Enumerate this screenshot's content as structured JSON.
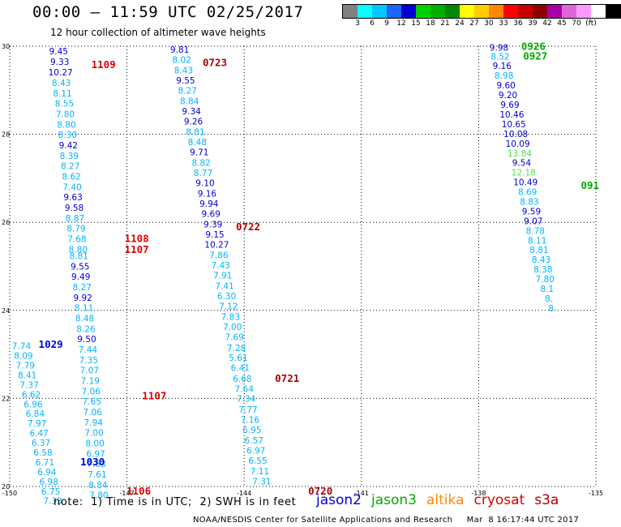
{
  "title": "00:00 – 11:59 UTC 02/25/2017",
  "subtitle": "12 hour collection of altimeter wave heights",
  "colorbar": {
    "colors": [
      "#808080",
      "#00ffff",
      "#00c8ff",
      "#1e64ff",
      "#0000d0",
      "#00d000",
      "#00b000",
      "#008800",
      "#ffff00",
      "#ffcc00",
      "#ff8800",
      "#ff0000",
      "#c80000",
      "#900000",
      "#aa00aa",
      "#dd66dd",
      "#ff99ff",
      "#ffffff",
      "#000000"
    ],
    "labels": [
      "3",
      "6",
      "9",
      "12",
      "15",
      "18",
      "21",
      "24",
      "27",
      "30",
      "33",
      "36",
      "39",
      "42",
      "45",
      "70",
      "(ft)"
    ]
  },
  "map": {
    "lon_range": [
      -150,
      -135
    ],
    "lat_range": [
      20,
      30
    ],
    "lon_ticks": [
      {
        "v": -150,
        "t": "-150"
      },
      {
        "v": -147,
        "t": "-147"
      },
      {
        "v": -144,
        "t": "-144"
      },
      {
        "v": -141,
        "t": "-141"
      },
      {
        "v": -138,
        "t": "-138"
      },
      {
        "v": -135,
        "t": "-135"
      }
    ],
    "lat_ticks": [
      {
        "v": 30,
        "t": "30"
      },
      {
        "v": 28,
        "t": "28"
      },
      {
        "v": 26,
        "t": "26"
      },
      {
        "v": 24,
        "t": "24"
      },
      {
        "v": 22,
        "t": "22"
      },
      {
        "v": 20,
        "t": "20"
      }
    ]
  },
  "satellite_colors": {
    "jason2": "#0000dd",
    "jason3": "#00aa00",
    "altika": "#ff8800",
    "cryosat": "#dd0000",
    "s3a": "#aa0000",
    "h_light": "#00b4ff",
    "h_mid": "#1e78ff",
    "h_dark": "#0000cc"
  },
  "tracks": [
    {
      "id": "A",
      "points": [
        {
          "lon": -148.75,
          "lat": 29.82,
          "swh": "9.45"
        },
        {
          "lon": -148.72,
          "lat": 29.58,
          "swh": "9.33"
        },
        {
          "lon": -148.7,
          "lat": 29.34,
          "swh": "10.27"
        },
        {
          "lon": -148.68,
          "lat": 29.1,
          "swh": "8.43"
        },
        {
          "lon": -148.65,
          "lat": 28.86,
          "swh": "8.11"
        },
        {
          "lon": -148.6,
          "lat": 28.63,
          "swh": "8.55"
        },
        {
          "lon": -148.58,
          "lat": 28.39,
          "swh": "7.80"
        },
        {
          "lon": -148.55,
          "lat": 28.15,
          "swh": "8.80"
        },
        {
          "lon": -148.52,
          "lat": 27.92,
          "swh": "8.30"
        },
        {
          "lon": -148.5,
          "lat": 27.68,
          "swh": "9.42"
        },
        {
          "lon": -148.48,
          "lat": 27.44,
          "swh": "8.39"
        },
        {
          "lon": -148.45,
          "lat": 27.21,
          "swh": "8.27"
        },
        {
          "lon": -148.42,
          "lat": 26.97,
          "swh": "8.62"
        },
        {
          "lon": -148.4,
          "lat": 26.73,
          "swh": "7.40"
        },
        {
          "lon": -148.38,
          "lat": 26.5,
          "swh": "9.63"
        },
        {
          "lon": -148.35,
          "lat": 26.26,
          "swh": "9.58"
        },
        {
          "lon": -148.33,
          "lat": 26.02,
          "swh": "8.87"
        },
        {
          "lon": -148.3,
          "lat": 25.79,
          "swh": "8.79"
        },
        {
          "lon": -148.28,
          "lat": 25.55,
          "swh": "7.68"
        },
        {
          "lon": -148.25,
          "lat": 25.31,
          "swh": "8.80"
        },
        {
          "lon": -148.23,
          "lat": 25.17,
          "swh": "8.81"
        },
        {
          "lon": -148.2,
          "lat": 24.93,
          "swh": "9.55"
        },
        {
          "lon": -148.18,
          "lat": 24.7,
          "swh": "9.49"
        },
        {
          "lon": -148.15,
          "lat": 24.46,
          "swh": "8.27"
        },
        {
          "lon": -148.13,
          "lat": 24.22,
          "swh": "9.92"
        },
        {
          "lon": -148.1,
          "lat": 23.99,
          "swh": "8.11"
        },
        {
          "lon": -148.08,
          "lat": 23.75,
          "swh": "8.48"
        },
        {
          "lon": -148.05,
          "lat": 23.51,
          "swh": "8.26"
        },
        {
          "lon": -148.03,
          "lat": 23.28,
          "swh": "9.50"
        },
        {
          "lon": -148.0,
          "lat": 23.04,
          "swh": "7.44"
        },
        {
          "lon": -147.98,
          "lat": 22.8,
          "swh": "7.35"
        },
        {
          "lon": -147.96,
          "lat": 22.57,
          "swh": "7.07"
        },
        {
          "lon": -147.94,
          "lat": 22.33,
          "swh": "7.19"
        },
        {
          "lon": -147.92,
          "lat": 22.09,
          "swh": "7.06"
        },
        {
          "lon": -147.9,
          "lat": 21.86,
          "swh": "7.65"
        },
        {
          "lon": -147.88,
          "lat": 21.62,
          "swh": "7.06"
        },
        {
          "lon": -147.86,
          "lat": 21.38,
          "swh": "7.94"
        },
        {
          "lon": -147.84,
          "lat": 21.15,
          "swh": "7.00"
        },
        {
          "lon": -147.82,
          "lat": 20.91,
          "swh": "8.00"
        },
        {
          "lon": -147.8,
          "lat": 20.67,
          "swh": "6.97"
        },
        {
          "lon": -147.78,
          "lat": 20.44,
          "swh": "7.63"
        },
        {
          "lon": -147.76,
          "lat": 20.2,
          "swh": "7.61"
        },
        {
          "lon": -147.74,
          "lat": 19.96,
          "swh": "8.84"
        },
        {
          "lon": -147.72,
          "lat": 19.73,
          "swh": "7.80"
        }
      ]
    },
    {
      "id": "B",
      "points": [
        {
          "lon": -149.7,
          "lat": 23.12,
          "swh": "7.74"
        },
        {
          "lon": -149.65,
          "lat": 22.9,
          "swh": "8.09"
        },
        {
          "lon": -149.6,
          "lat": 22.68,
          "swh": "7.79"
        },
        {
          "lon": -149.55,
          "lat": 22.46,
          "swh": "8.41"
        },
        {
          "lon": -149.5,
          "lat": 22.24,
          "swh": "7.37"
        },
        {
          "lon": -149.45,
          "lat": 22.02,
          "swh": "6.62"
        },
        {
          "lon": -149.4,
          "lat": 21.8,
          "swh": "6.96"
        },
        {
          "lon": -149.35,
          "lat": 21.58,
          "swh": "6.84"
        },
        {
          "lon": -149.3,
          "lat": 21.36,
          "swh": "7.97"
        },
        {
          "lon": -149.25,
          "lat": 21.14,
          "swh": "6.47"
        },
        {
          "lon": -149.2,
          "lat": 20.92,
          "swh": "6.37"
        },
        {
          "lon": -149.15,
          "lat": 20.7,
          "swh": "6.58"
        },
        {
          "lon": -149.1,
          "lat": 20.48,
          "swh": "6.71"
        },
        {
          "lon": -149.05,
          "lat": 20.26,
          "swh": "6.94"
        },
        {
          "lon": -149.0,
          "lat": 20.04,
          "swh": "6.98"
        },
        {
          "lon": -148.95,
          "lat": 19.82,
          "swh": "6.75"
        },
        {
          "lon": -148.9,
          "lat": 19.6,
          "swh": "7.33"
        }
      ]
    },
    {
      "id": "C",
      "points": [
        {
          "lon": -145.65,
          "lat": 29.85,
          "swh": "9.81"
        },
        {
          "lon": -145.6,
          "lat": 29.62,
          "swh": "8.02"
        },
        {
          "lon": -145.55,
          "lat": 29.38,
          "swh": "8.43"
        },
        {
          "lon": -145.5,
          "lat": 29.15,
          "swh": "9.55"
        },
        {
          "lon": -145.45,
          "lat": 28.92,
          "swh": "8.27"
        },
        {
          "lon": -145.4,
          "lat": 28.68,
          "swh": "8.84"
        },
        {
          "lon": -145.35,
          "lat": 28.45,
          "swh": "9.34"
        },
        {
          "lon": -145.3,
          "lat": 28.22,
          "swh": "9.26"
        },
        {
          "lon": -145.25,
          "lat": 27.98,
          "swh": "8.81"
        },
        {
          "lon": -145.2,
          "lat": 27.75,
          "swh": "8.48"
        },
        {
          "lon": -145.15,
          "lat": 27.52,
          "swh": "9.71"
        },
        {
          "lon": -145.1,
          "lat": 27.28,
          "swh": "8.82"
        },
        {
          "lon": -145.05,
          "lat": 27.05,
          "swh": "8.77"
        },
        {
          "lon": -145.0,
          "lat": 26.82,
          "swh": "9.10"
        },
        {
          "lon": -144.95,
          "lat": 26.58,
          "swh": "9.16"
        },
        {
          "lon": -144.9,
          "lat": 26.35,
          "swh": "9.94"
        },
        {
          "lon": -144.85,
          "lat": 26.12,
          "swh": "9.69"
        },
        {
          "lon": -144.8,
          "lat": 25.88,
          "swh": "9.39"
        },
        {
          "lon": -144.75,
          "lat": 25.65,
          "swh": "9.15"
        },
        {
          "lon": -144.7,
          "lat": 25.42,
          "swh": "10.27"
        },
        {
          "lon": -144.65,
          "lat": 25.18,
          "swh": "7.86"
        },
        {
          "lon": -144.6,
          "lat": 24.95,
          "swh": "7.43"
        },
        {
          "lon": -144.55,
          "lat": 24.72,
          "swh": "7.91"
        },
        {
          "lon": -144.5,
          "lat": 24.48,
          "swh": "7.41"
        },
        {
          "lon": -144.45,
          "lat": 24.25,
          "swh": "6.30"
        },
        {
          "lon": -144.4,
          "lat": 24.02,
          "swh": "7.12"
        },
        {
          "lon": -144.35,
          "lat": 23.78,
          "swh": "7.83"
        },
        {
          "lon": -144.3,
          "lat": 23.55,
          "swh": "7.00"
        },
        {
          "lon": -144.25,
          "lat": 23.32,
          "swh": "7.69"
        },
        {
          "lon": -144.2,
          "lat": 23.08,
          "swh": "7.28"
        },
        {
          "lon": -144.15,
          "lat": 22.85,
          "swh": "5.61"
        },
        {
          "lon": -144.1,
          "lat": 22.62,
          "swh": "6.41"
        },
        {
          "lon": -144.05,
          "lat": 22.38,
          "swh": "6.68"
        },
        {
          "lon": -144.0,
          "lat": 22.15,
          "swh": "7.64"
        },
        {
          "lon": -143.95,
          "lat": 21.92,
          "swh": "7.34"
        },
        {
          "lon": -143.9,
          "lat": 21.68,
          "swh": "7.77"
        },
        {
          "lon": -143.85,
          "lat": 21.45,
          "swh": "7.16"
        },
        {
          "lon": -143.8,
          "lat": 21.22,
          "swh": "6.95"
        },
        {
          "lon": -143.75,
          "lat": 20.98,
          "swh": "6.57"
        },
        {
          "lon": -143.7,
          "lat": 20.75,
          "swh": "6.97"
        },
        {
          "lon": -143.65,
          "lat": 20.52,
          "swh": "6.55"
        },
        {
          "lon": -143.6,
          "lat": 20.28,
          "swh": "7.11"
        },
        {
          "lon": -143.55,
          "lat": 20.05,
          "swh": "7.31"
        }
      ]
    },
    {
      "id": "D",
      "points": [
        {
          "lon": -137.48,
          "lat": 29.9,
          "swh": "9.98"
        },
        {
          "lon": -137.45,
          "lat": 29.7,
          "swh": "8.52"
        },
        {
          "lon": -137.4,
          "lat": 29.48,
          "swh": "9.16"
        },
        {
          "lon": -137.35,
          "lat": 29.26,
          "swh": "8.98"
        },
        {
          "lon": -137.3,
          "lat": 29.04,
          "swh": "9.60"
        },
        {
          "lon": -137.25,
          "lat": 28.82,
          "swh": "9.20"
        },
        {
          "lon": -137.2,
          "lat": 28.6,
          "swh": "9.69"
        },
        {
          "lon": -137.15,
          "lat": 28.38,
          "swh": "10.46"
        },
        {
          "lon": -137.1,
          "lat": 28.16,
          "swh": "10.65"
        },
        {
          "lon": -137.05,
          "lat": 27.94,
          "swh": "10.08"
        },
        {
          "lon": -137.0,
          "lat": 27.72,
          "swh": "10.09"
        },
        {
          "lon": -136.95,
          "lat": 27.5,
          "swh": "13.84"
        },
        {
          "lon": -136.9,
          "lat": 27.28,
          "swh": "9.54"
        },
        {
          "lon": -136.85,
          "lat": 27.06,
          "swh": "12.18"
        },
        {
          "lon": -136.8,
          "lat": 26.84,
          "swh": "10.49"
        },
        {
          "lon": -136.75,
          "lat": 26.62,
          "swh": "8.69"
        },
        {
          "lon": -136.7,
          "lat": 26.4,
          "swh": "8.83"
        },
        {
          "lon": -136.65,
          "lat": 26.18,
          "swh": "9.59"
        },
        {
          "lon": -136.6,
          "lat": 25.96,
          "swh": "9.07"
        },
        {
          "lon": -136.55,
          "lat": 25.74,
          "swh": "8.78"
        },
        {
          "lon": -136.5,
          "lat": 25.52,
          "swh": "8.11"
        },
        {
          "lon": -136.45,
          "lat": 25.3,
          "swh": "8.81"
        },
        {
          "lon": -136.4,
          "lat": 25.08,
          "swh": "8.43"
        },
        {
          "lon": -136.35,
          "lat": 24.86,
          "swh": "8.38"
        },
        {
          "lon": -136.3,
          "lat": 24.64,
          "swh": "7.80"
        },
        {
          "lon": -136.25,
          "lat": 24.42,
          "swh": "8.1"
        },
        {
          "lon": -136.2,
          "lat": 24.2,
          "swh": "8."
        },
        {
          "lon": -136.15,
          "lat": 23.98,
          "swh": "8"
        }
      ]
    }
  ],
  "pass_labels": [
    {
      "text": "1109",
      "lon": -147.6,
      "lat": 29.5,
      "sat": "cryosat"
    },
    {
      "text": "0723",
      "lon": -144.75,
      "lat": 29.55,
      "sat": "s3a"
    },
    {
      "text": "1108",
      "lon": -146.75,
      "lat": 25.55,
      "sat": "cryosat"
    },
    {
      "text": "1107",
      "lon": -146.75,
      "lat": 25.3,
      "sat": "cryosat"
    },
    {
      "text": "0722",
      "lon": -143.9,
      "lat": 25.82,
      "sat": "s3a"
    },
    {
      "text": "1029",
      "lon": -148.95,
      "lat": 23.15,
      "sat": "jason2"
    },
    {
      "text": "0721",
      "lon": -142.9,
      "lat": 22.38,
      "sat": "s3a"
    },
    {
      "text": "1107",
      "lon": -146.3,
      "lat": 21.98,
      "sat": "cryosat"
    },
    {
      "text": "1030",
      "lon": -147.88,
      "lat": 20.48,
      "sat": "jason2"
    },
    {
      "text": "1106",
      "lon": -146.7,
      "lat": 19.82,
      "sat": "cryosat"
    },
    {
      "text": "0720",
      "lon": -142.05,
      "lat": 19.82,
      "sat": "s3a"
    },
    {
      "text": "0926",
      "lon": -136.6,
      "lat": 29.92,
      "sat": "jason3"
    },
    {
      "text": "0927",
      "lon": -136.55,
      "lat": 29.7,
      "sat": "jason3"
    },
    {
      "text": "091",
      "lon": -135.15,
      "lat": 26.76,
      "sat": "jason3"
    }
  ],
  "note": "note:  1) Time is in UTC;  2) SWH is in feet",
  "legend": [
    {
      "name": "jason2",
      "sat": "jason2"
    },
    {
      "name": "jason3",
      "sat": "jason3"
    },
    {
      "name": "altika",
      "sat": "altika"
    },
    {
      "name": "cryosat",
      "sat": "cryosat"
    },
    {
      "name": "s3a",
      "sat": "s3a"
    }
  ],
  "credit": "NOAA/NESDIS Center for Satellite Applications and Research     Mar  8 16:17:44 UTC 2017"
}
